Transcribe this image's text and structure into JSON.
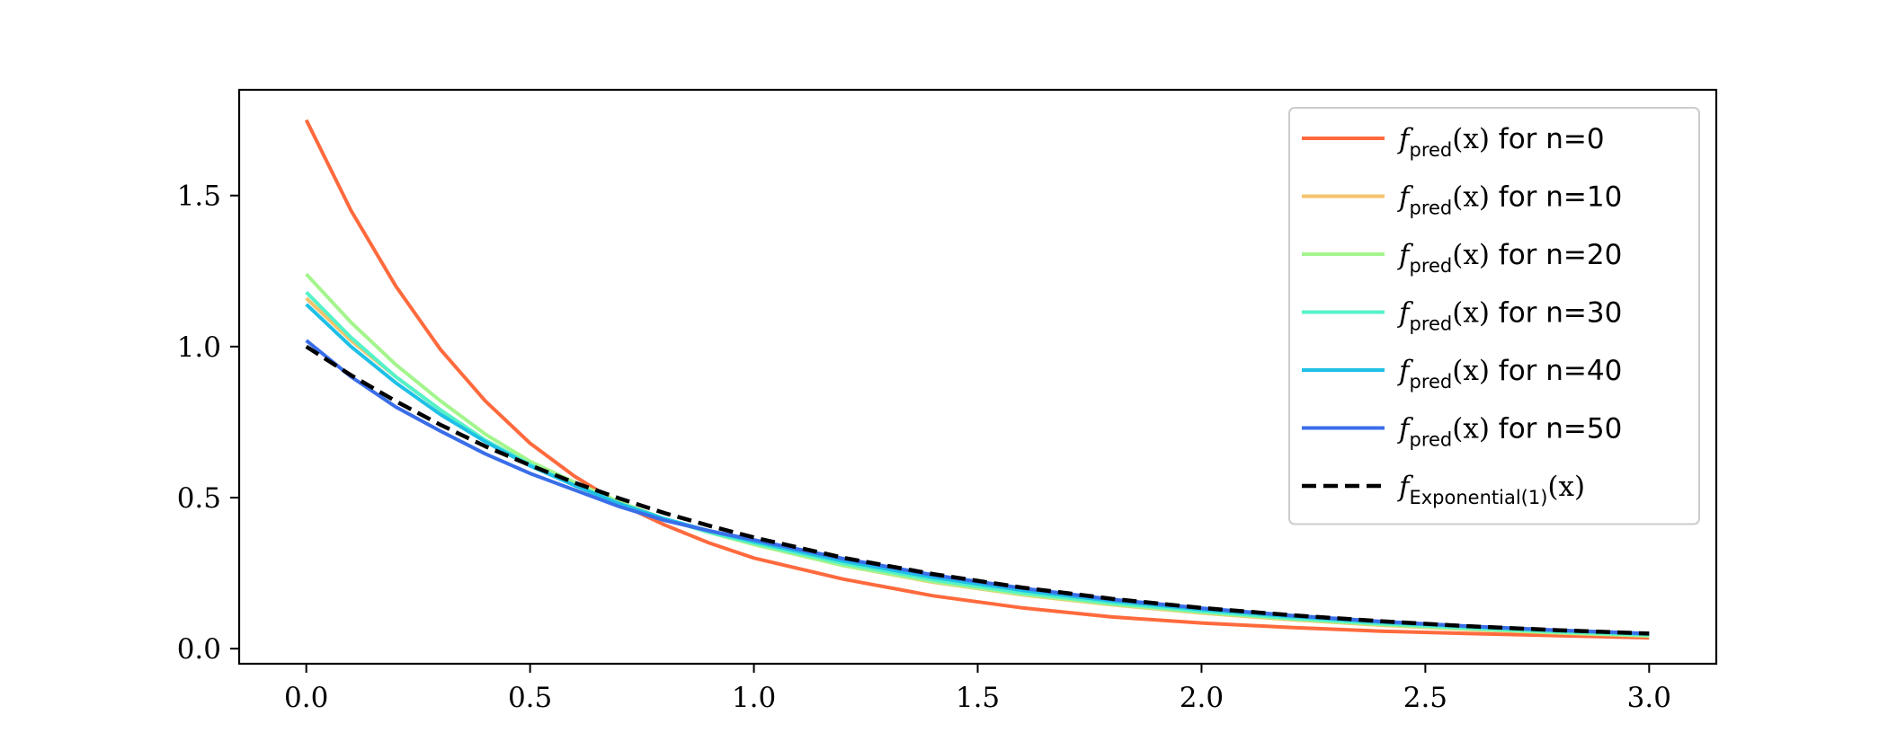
{
  "chart_data": {
    "type": "line",
    "title": "",
    "xlabel": "",
    "ylabel": "",
    "xlim": [
      -0.15,
      3.15
    ],
    "ylim": [
      -0.05,
      1.85
    ],
    "xticks": [
      0.0,
      0.5,
      1.0,
      1.5,
      2.0,
      2.5,
      3.0
    ],
    "xtick_labels": [
      "0.0",
      "0.5",
      "1.0",
      "1.5",
      "2.0",
      "2.5",
      "3.0"
    ],
    "yticks": [
      0.0,
      0.5,
      1.0,
      1.5
    ],
    "ytick_labels": [
      "0.0",
      "0.5",
      "1.0",
      "1.5"
    ],
    "grid": false,
    "legend_position": "top-right",
    "x": [
      0.0,
      0.1,
      0.2,
      0.3,
      0.4,
      0.5,
      0.6,
      0.7,
      0.8,
      0.9,
      1.0,
      1.2,
      1.4,
      1.6,
      1.8,
      2.0,
      2.2,
      2.4,
      2.6,
      2.8,
      3.0
    ],
    "series": [
      {
        "name": "n=0",
        "legend_var": "f",
        "legend_sub": "pred",
        "legend_arg": "(x)",
        "legend_suffix": " for n=0",
        "color": "#ff6a3d",
        "dash": "solid",
        "values": [
          1.75,
          1.45,
          1.2,
          0.99,
          0.82,
          0.68,
          0.57,
          0.48,
          0.41,
          0.35,
          0.3,
          0.23,
          0.175,
          0.135,
          0.105,
          0.085,
          0.07,
          0.058,
          0.05,
          0.043,
          0.036
        ]
      },
      {
        "name": "n=10",
        "legend_var": "f",
        "legend_sub": "pred",
        "legend_arg": "(x)",
        "legend_suffix": " for n=10",
        "color": "#f4c36b",
        "dash": "solid",
        "values": [
          1.16,
          1.02,
          0.9,
          0.79,
          0.69,
          0.61,
          0.54,
          0.48,
          0.43,
          0.385,
          0.345,
          0.275,
          0.22,
          0.178,
          0.145,
          0.118,
          0.096,
          0.078,
          0.064,
          0.052,
          0.042
        ]
      },
      {
        "name": "n=20",
        "legend_var": "f",
        "legend_sub": "pred",
        "legend_arg": "(x)",
        "legend_suffix": " for n=20",
        "color": "#a3f58c",
        "dash": "solid",
        "values": [
          1.24,
          1.08,
          0.94,
          0.82,
          0.71,
          0.62,
          0.55,
          0.485,
          0.43,
          0.385,
          0.345,
          0.275,
          0.222,
          0.18,
          0.147,
          0.12,
          0.098,
          0.08,
          0.065,
          0.053,
          0.043
        ]
      },
      {
        "name": "n=30",
        "legend_var": "f",
        "legend_sub": "pred",
        "legend_arg": "(x)",
        "legend_suffix": " for n=30",
        "color": "#54f2c8",
        "dash": "solid",
        "values": [
          1.18,
          1.03,
          0.9,
          0.79,
          0.69,
          0.61,
          0.54,
          0.48,
          0.43,
          0.385,
          0.35,
          0.282,
          0.228,
          0.185,
          0.151,
          0.124,
          0.101,
          0.083,
          0.068,
          0.056,
          0.046
        ]
      },
      {
        "name": "n=40",
        "legend_var": "f",
        "legend_sub": "pred",
        "legend_arg": "(x)",
        "legend_suffix": " for n=40",
        "color": "#1ec0e6",
        "dash": "solid",
        "values": [
          1.14,
          1.0,
          0.88,
          0.775,
          0.685,
          0.605,
          0.54,
          0.48,
          0.43,
          0.39,
          0.355,
          0.29,
          0.236,
          0.193,
          0.158,
          0.13,
          0.107,
          0.088,
          0.073,
          0.06,
          0.049
        ]
      },
      {
        "name": "n=50",
        "legend_var": "f",
        "legend_sub": "pred",
        "legend_arg": "(x)",
        "legend_suffix": " for n=50",
        "color": "#3a6ee8",
        "dash": "solid",
        "values": [
          1.02,
          0.9,
          0.8,
          0.72,
          0.645,
          0.58,
          0.525,
          0.47,
          0.425,
          0.39,
          0.36,
          0.298,
          0.244,
          0.2,
          0.163,
          0.134,
          0.11,
          0.09,
          0.074,
          0.061,
          0.05
        ]
      },
      {
        "name": "Exponential(1)",
        "legend_var": "f",
        "legend_sub": "Exponential(1)",
        "legend_arg": "(x)",
        "legend_suffix": "",
        "color": "#000000",
        "dash": "dashed",
        "values": [
          1.0,
          0.905,
          0.819,
          0.741,
          0.67,
          0.607,
          0.549,
          0.497,
          0.449,
          0.407,
          0.368,
          0.301,
          0.247,
          0.202,
          0.165,
          0.135,
          0.111,
          0.091,
          0.074,
          0.061,
          0.05
        ]
      }
    ]
  }
}
